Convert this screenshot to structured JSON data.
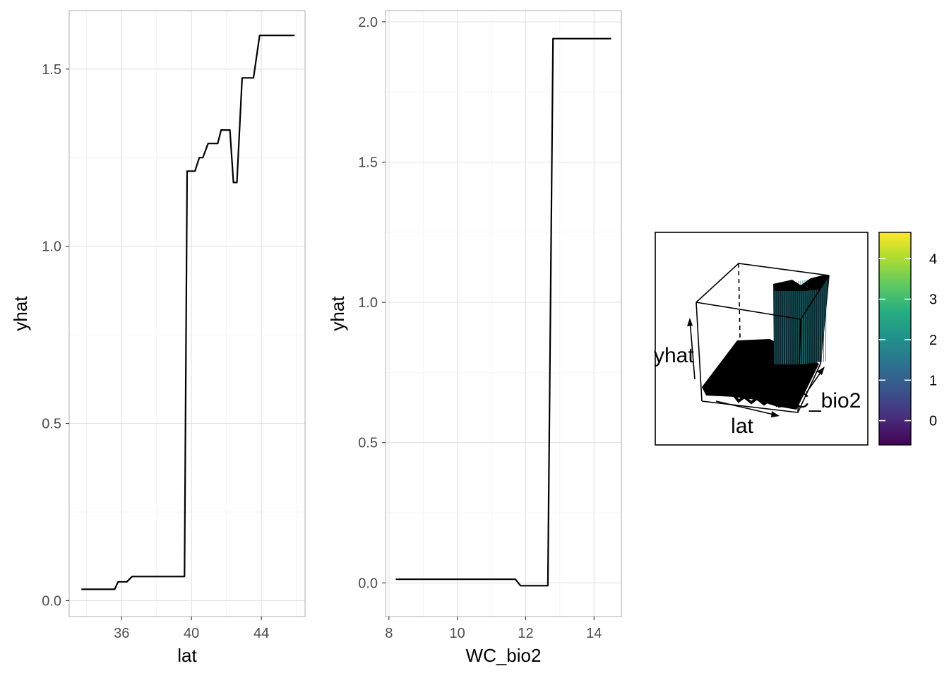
{
  "chart_data": [
    {
      "type": "line",
      "xlabel": "lat",
      "ylabel": "yhat",
      "xticks": [
        "36",
        "40",
        "44"
      ],
      "xtick_values": [
        36,
        40,
        44
      ],
      "yticks": [
        "0.0",
        "0.5",
        "1.0",
        "1.5"
      ],
      "ytick_values": [
        0.0,
        0.5,
        1.0,
        1.5
      ],
      "xlim": [
        33.0,
        46.5
      ],
      "ylim": [
        -0.045,
        1.665
      ],
      "x": [
        33.7,
        35.6,
        35.8,
        36.3,
        36.6,
        39.2,
        39.6,
        39.75,
        40.2,
        40.45,
        40.65,
        40.95,
        41.5,
        41.7,
        42.2,
        42.4,
        42.6,
        42.9,
        43.55,
        43.9,
        45.9
      ],
      "y": [
        0.032,
        0.032,
        0.053,
        0.053,
        0.068,
        0.068,
        0.068,
        1.212,
        1.212,
        1.25,
        1.25,
        1.29,
        1.29,
        1.328,
        1.328,
        1.18,
        1.18,
        1.475,
        1.475,
        1.595,
        1.595
      ]
    },
    {
      "type": "line",
      "xlabel": "WC_bio2",
      "ylabel": "yhat",
      "xticks": [
        "8",
        "10",
        "12",
        "14"
      ],
      "xtick_values": [
        8,
        10,
        12,
        14
      ],
      "yticks": [
        "0.0",
        "0.5",
        "1.0",
        "1.5",
        "2.0"
      ],
      "ytick_values": [
        0.0,
        0.5,
        1.0,
        1.5,
        2.0
      ],
      "xlim": [
        7.9,
        14.8
      ],
      "ylim": [
        -0.12,
        2.04
      ],
      "x": [
        8.2,
        11.7,
        11.85,
        12.65,
        12.8,
        14.5
      ],
      "y": [
        0.013,
        0.013,
        -0.01,
        -0.01,
        1.94,
        1.94
      ]
    },
    {
      "type": "surface",
      "xlabel": "lat",
      "ylabel": "WC_bio2",
      "zlabel": "yhat",
      "colorbar": {
        "ticks": [
          "0",
          "1",
          "2",
          "3",
          "4"
        ],
        "tick_values": [
          0,
          1,
          2,
          3,
          4
        ],
        "range": [
          -0.6,
          4.65
        ],
        "palette": [
          "#440154",
          "#472D7B",
          "#3B528B",
          "#2C728E",
          "#21908C",
          "#27AD81",
          "#5DC863",
          "#AADC32",
          "#FDE725"
        ]
      }
    }
  ]
}
